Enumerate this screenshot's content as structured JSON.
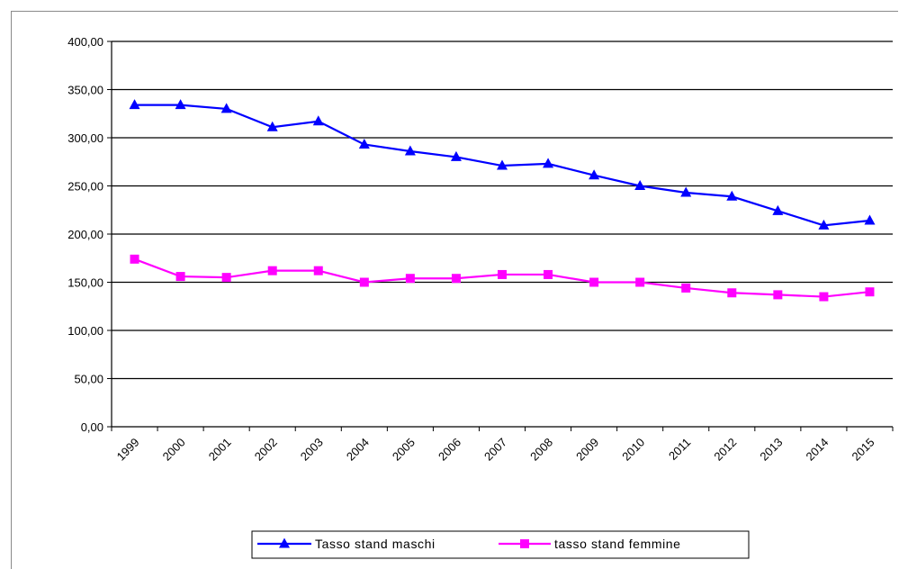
{
  "chart_data": {
    "type": "line",
    "title": "",
    "xlabel": "",
    "ylabel": "",
    "ylim": [
      0,
      400
    ],
    "y_ticks": [
      "0,00",
      "50,00",
      "100,00",
      "150,00",
      "200,00",
      "250,00",
      "300,00",
      "350,00",
      "400,00"
    ],
    "grid": "horizontal",
    "legend_position": "bottom",
    "categories": [
      "1999",
      "2000",
      "2001",
      "2002",
      "2003",
      "2004",
      "2005",
      "2006",
      "2007",
      "2008",
      "2009",
      "2010",
      "2011",
      "2012",
      "2013",
      "2014",
      "2015"
    ],
    "series": [
      {
        "name": "Tasso stand maschi",
        "color": "#0000ff",
        "marker": "triangle",
        "values": [
          334,
          334,
          330,
          311,
          317,
          293,
          286,
          280,
          271,
          273,
          261,
          250,
          243,
          239,
          224,
          209,
          214
        ]
      },
      {
        "name": "tasso stand femmine",
        "color": "#ff00ff",
        "marker": "square",
        "values": [
          174,
          156,
          155,
          162,
          162,
          150,
          154,
          154,
          158,
          158,
          150,
          150,
          144,
          139,
          137,
          135,
          140
        ]
      }
    ]
  }
}
